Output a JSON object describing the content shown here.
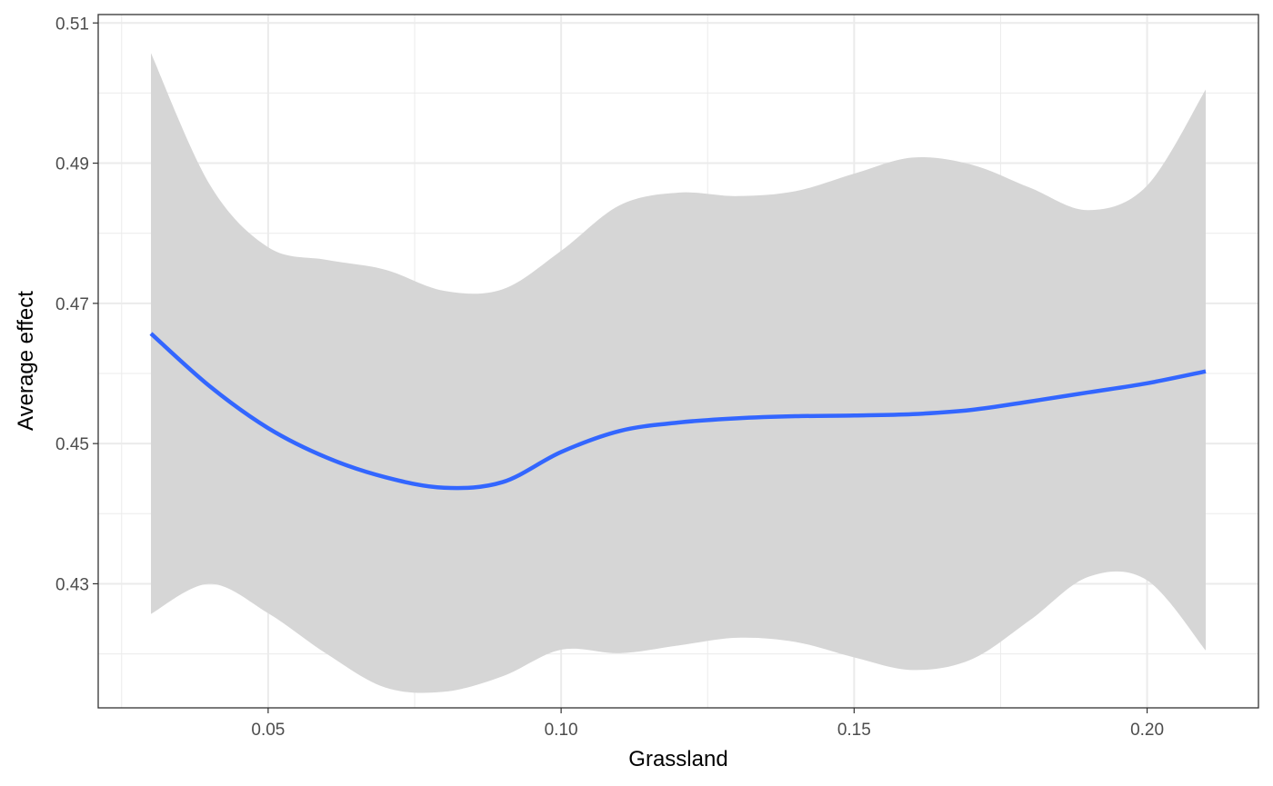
{
  "chart_data": {
    "type": "line",
    "xlabel": "Grassland",
    "ylabel": "Average effect",
    "xlim": [
      0.021,
      0.219
    ],
    "ylim": [
      0.4123,
      0.5112
    ],
    "x_ticks": [
      0.05,
      0.1,
      0.15,
      0.2
    ],
    "x_tick_labels": [
      "0.05",
      "0.10",
      "0.15",
      "0.20"
    ],
    "y_ticks": [
      0.43,
      0.45,
      0.47,
      0.49,
      0.51
    ],
    "y_tick_labels": [
      "0.43",
      "0.45",
      "0.47",
      "0.49",
      "0.51"
    ],
    "grid": true,
    "series": [
      {
        "type": "smooth",
        "color": "#3366ff",
        "x": [
          0.03,
          0.04,
          0.05,
          0.06,
          0.07,
          0.08,
          0.09,
          0.1,
          0.11,
          0.12,
          0.13,
          0.14,
          0.15,
          0.16,
          0.17,
          0.18,
          0.19,
          0.2,
          0.21
        ],
        "y": [
          0.4657,
          0.4582,
          0.4522,
          0.448,
          0.4452,
          0.4437,
          0.4445,
          0.4488,
          0.4518,
          0.453,
          0.4536,
          0.4539,
          0.454,
          0.4542,
          0.4548,
          0.456,
          0.4573,
          0.4586,
          0.4603
        ],
        "lower": [
          0.4257,
          0.43,
          0.4258,
          0.42,
          0.4152,
          0.4146,
          0.4168,
          0.4206,
          0.4201,
          0.4212,
          0.4223,
          0.4217,
          0.4195,
          0.4177,
          0.4192,
          0.4248,
          0.431,
          0.4305,
          0.4205
        ],
        "upper": [
          0.5057,
          0.487,
          0.478,
          0.4762,
          0.4748,
          0.4718,
          0.472,
          0.4775,
          0.484,
          0.4858,
          0.4853,
          0.486,
          0.4885,
          0.4908,
          0.4898,
          0.4865,
          0.4833,
          0.4868,
          0.5005
        ]
      }
    ],
    "ribbon_color": "#d6d6d6"
  }
}
